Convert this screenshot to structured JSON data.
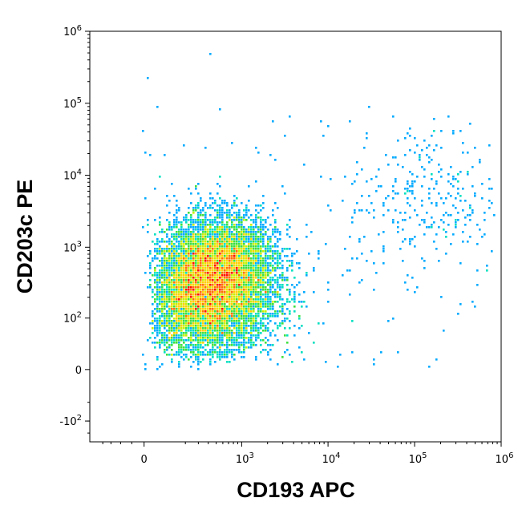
{
  "chart_data": {
    "type": "scatter",
    "title": "",
    "xlabel": "CD193 APC",
    "ylabel": "CD203c PE",
    "x_scale": "biexponential",
    "y_scale": "biexponential",
    "xlim": [
      -300,
      1000000
    ],
    "ylim": [
      -200,
      1000000
    ],
    "x_ticks": [
      {
        "value": 0,
        "base": "0",
        "exp": ""
      },
      {
        "value": 1000,
        "base": "10",
        "exp": "3"
      },
      {
        "value": 10000,
        "base": "10",
        "exp": "4"
      },
      {
        "value": 100000,
        "base": "10",
        "exp": "5"
      },
      {
        "value": 1000000,
        "base": "10",
        "exp": "6"
      }
    ],
    "y_ticks": [
      {
        "value": -100,
        "base": "-10",
        "exp": "2"
      },
      {
        "value": 0,
        "base": "0",
        "exp": ""
      },
      {
        "value": 100,
        "base": "10",
        "exp": "2"
      },
      {
        "value": 1000,
        "base": "10",
        "exp": "3"
      },
      {
        "value": 10000,
        "base": "10",
        "exp": "4"
      },
      {
        "value": 100000,
        "base": "10",
        "exp": "5"
      },
      {
        "value": 1000000,
        "base": "10",
        "exp": "6"
      }
    ],
    "colormap": [
      "#0000cc",
      "#0044ff",
      "#00aaff",
      "#00e0c0",
      "#40e040",
      "#c8f000",
      "#ffd000",
      "#ff7000",
      "#ff1000"
    ],
    "populations": [
      {
        "center": [
          400,
          230
        ],
        "spread": [
          0.13,
          0.15
        ],
        "count": 9000
      },
      {
        "center": [
          650,
          650
        ],
        "spread": [
          0.1,
          0.11
        ],
        "count": 3000
      },
      {
        "center": [
          150000,
          4800
        ],
        "spread": [
          0.16,
          0.18
        ],
        "count": 300
      },
      {
        "center": [
          3000,
          700
        ],
        "spread": [
          0.55,
          0.38
        ],
        "count": 180
      }
    ],
    "grid": false,
    "legend": "none"
  }
}
